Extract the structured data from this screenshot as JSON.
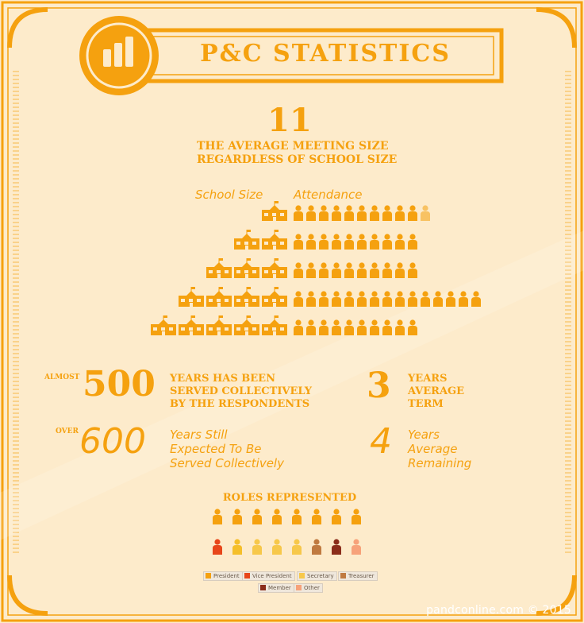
{
  "header": {
    "title": "P&C STATISTICS",
    "icon": "bar-chart-icon"
  },
  "meeting": {
    "value": "11",
    "line1": "THE AVERAGE MEETING SIZE",
    "line2": "REGARDLESS OF SCHOOL SIZE"
  },
  "attendance": {
    "label_school": "School Size",
    "label_attendance": "Attendance",
    "rows": [
      {
        "schools": 1,
        "people": 10.5
      },
      {
        "schools": 2,
        "people": 10
      },
      {
        "schools": 3,
        "people": 10
      },
      {
        "schools": 4,
        "people": 15
      },
      {
        "schools": 5,
        "people": 10
      }
    ]
  },
  "stats": {
    "almost_label": "ALMOST",
    "almost_value": "500",
    "almost_text": [
      "YEARS HAS BEEN",
      "SERVED COLLECTIVELY",
      "BY THE RESPONDENTS"
    ],
    "term_value": "3",
    "term_text": [
      "YEARS",
      "AVERAGE",
      "TERM"
    ],
    "over_label": "OVER",
    "over_value": "600",
    "over_text": [
      "Years Still",
      "Expected To Be",
      "Served Collectively"
    ],
    "remaining_value": "4",
    "remaining_text": [
      "Years",
      "Average",
      "Remaining"
    ]
  },
  "roles": {
    "title": "ROLES REPRESENTED",
    "row1_colors": [
      "#f5a10f",
      "#f5a10f",
      "#f5a10f",
      "#f5a10f",
      "#f5a10f",
      "#f5a10f",
      "#f5a10f",
      "#f5a10f"
    ],
    "row2_colors": [
      "#e8461a",
      "#f5bf2a",
      "#f7c84a",
      "#f7c84a",
      "#f7c84a",
      "#c07a40",
      "#8b2d1a",
      "#f7a27a"
    ],
    "legend": [
      {
        "label": "President",
        "color": "#f5a10f"
      },
      {
        "label": "Vice President",
        "color": "#e8461a"
      },
      {
        "label": "Secretary",
        "color": "#f7c84a"
      },
      {
        "label": "Treasurer",
        "color": "#c07a40"
      },
      {
        "label": "Member",
        "color": "#8b2d1a"
      },
      {
        "label": "Other",
        "color": "#f7a27a"
      }
    ]
  },
  "footer": {
    "text": "pandconline.com © 2015"
  },
  "colors": {
    "accent": "#f5a10f",
    "background": "#fdebcb"
  }
}
